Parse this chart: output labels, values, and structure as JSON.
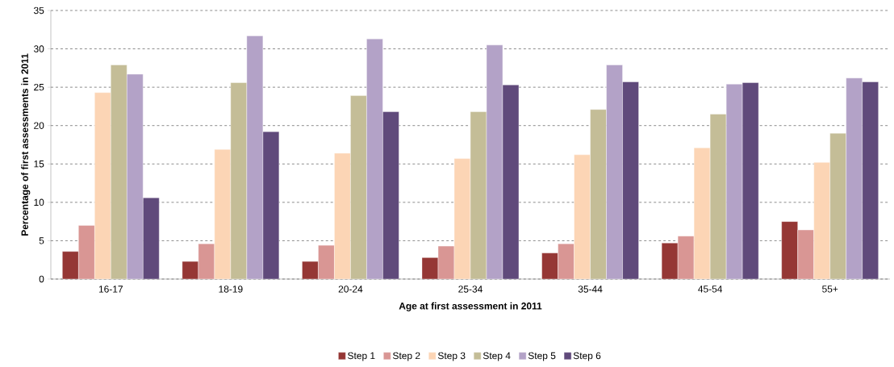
{
  "chart_data": {
    "type": "bar",
    "xlabel": "Age at first assessment in 2011",
    "ylabel": "Percentage of first assessments in 2011",
    "categories": [
      "16-17",
      "18-19",
      "20-24",
      "25-34",
      "35-44",
      "45-54",
      "55+"
    ],
    "series": [
      {
        "name": "Step 1",
        "color": "#953735",
        "values": [
          3.6,
          2.3,
          2.3,
          2.8,
          3.4,
          4.7,
          7.5
        ]
      },
      {
        "name": "Step 2",
        "color": "#d99694",
        "values": [
          7.0,
          4.6,
          4.4,
          4.3,
          4.6,
          5.6,
          6.4
        ]
      },
      {
        "name": "Step 3",
        "color": "#fcd5b5",
        "values": [
          24.3,
          16.9,
          16.4,
          15.7,
          16.2,
          17.1,
          15.2
        ]
      },
      {
        "name": "Step 4",
        "color": "#c4bd97",
        "values": [
          27.9,
          25.6,
          23.9,
          21.8,
          22.1,
          21.5,
          19.0
        ]
      },
      {
        "name": "Step 5",
        "color": "#b3a2c7",
        "values": [
          26.7,
          31.7,
          31.3,
          30.5,
          27.9,
          25.4,
          26.2
        ]
      },
      {
        "name": "Step 6",
        "color": "#604a7b",
        "values": [
          10.6,
          19.2,
          21.8,
          25.3,
          25.7,
          25.6,
          25.7
        ]
      }
    ],
    "ylim": [
      0,
      35
    ],
    "yticks": [
      0,
      5,
      10,
      15,
      20,
      25,
      30,
      35
    ],
    "grid": "y",
    "legend": "bottom"
  }
}
